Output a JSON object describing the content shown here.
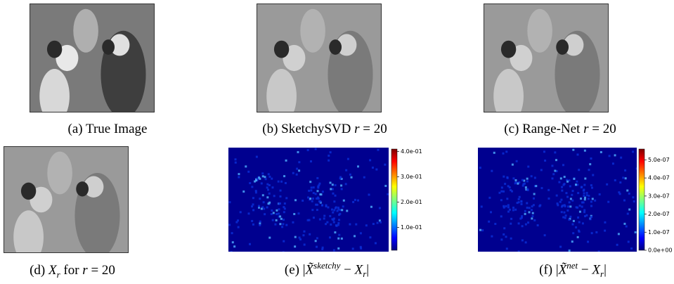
{
  "panels": [
    {
      "caption": [
        "(a) True Image"
      ]
    },
    {
      "caption": [
        "(b) SketchySVD ",
        "r",
        " = 20"
      ]
    },
    {
      "caption": [
        "(c) Range-Net ",
        "r",
        " = 20"
      ]
    },
    {
      "caption": [
        "(d) ",
        "X",
        "r",
        " for ",
        "r",
        " = 20"
      ]
    },
    {
      "caption": [
        "(e) |",
        "X̃",
        "sketchy",
        " − ",
        "X",
        "r",
        "|"
      ],
      "colorbar": {
        "lim": [
          0.01,
          0.41
        ],
        "ticks": [
          {
            "value": 0.1,
            "label": "1.0e-01"
          },
          {
            "value": 0.2,
            "label": "2.0e-01"
          },
          {
            "value": 0.3,
            "label": "3.0e-01"
          },
          {
            "value": 0.4,
            "label": "4.0e-01"
          }
        ]
      }
    },
    {
      "caption": [
        "(f) |",
        "X̃",
        "net",
        " − ",
        "X",
        "r",
        "|"
      ],
      "colorbar": {
        "lim": [
          0,
          5.6e-07
        ],
        "ticks": [
          {
            "value": 0,
            "label": "0.0e+00"
          },
          {
            "value": 1e-07,
            "label": "1.0e-07"
          },
          {
            "value": 2e-07,
            "label": "2.0e-07"
          },
          {
            "value": 3e-07,
            "label": "3.0e-07"
          },
          {
            "value": 4e-07,
            "label": "4.0e-07"
          },
          {
            "value": 5e-07,
            "label": "5.0e-07"
          }
        ]
      }
    }
  ]
}
